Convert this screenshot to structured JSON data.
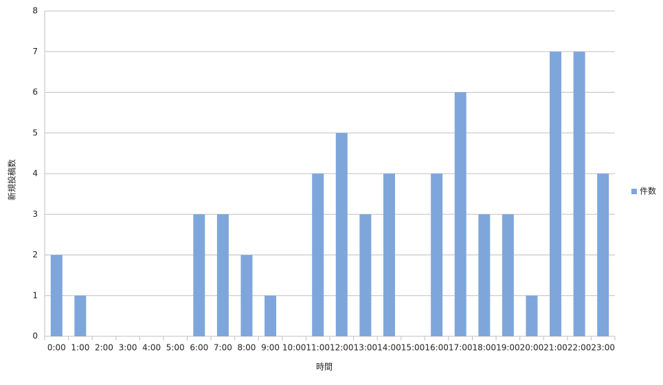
{
  "chart_data": {
    "type": "bar",
    "x_label": "時間",
    "y_label": "新規投稿数",
    "categories": [
      "0:00",
      "1:00",
      "2:00",
      "3:00",
      "4:00",
      "5:00",
      "6:00",
      "7:00",
      "8:00",
      "9:00",
      "10:00",
      "11:00",
      "12:00",
      "13:00",
      "14:00",
      "15:00",
      "16:00",
      "17:00",
      "18:00",
      "19:00",
      "20:00",
      "21:00",
      "22:00",
      "23:00"
    ],
    "series": [
      {
        "name": "件数",
        "color": "#7ea6db",
        "values": [
          2,
          1,
          0,
          0,
          0,
          0,
          3,
          3,
          2,
          1,
          0,
          4,
          5,
          3,
          4,
          0,
          4,
          6,
          3,
          3,
          1,
          7,
          7,
          4
        ]
      }
    ],
    "ylim": [
      0,
      8
    ],
    "yticks": [
      0,
      1,
      2,
      3,
      4,
      5,
      6,
      7,
      8
    ],
    "grid": true,
    "legend": "right"
  }
}
